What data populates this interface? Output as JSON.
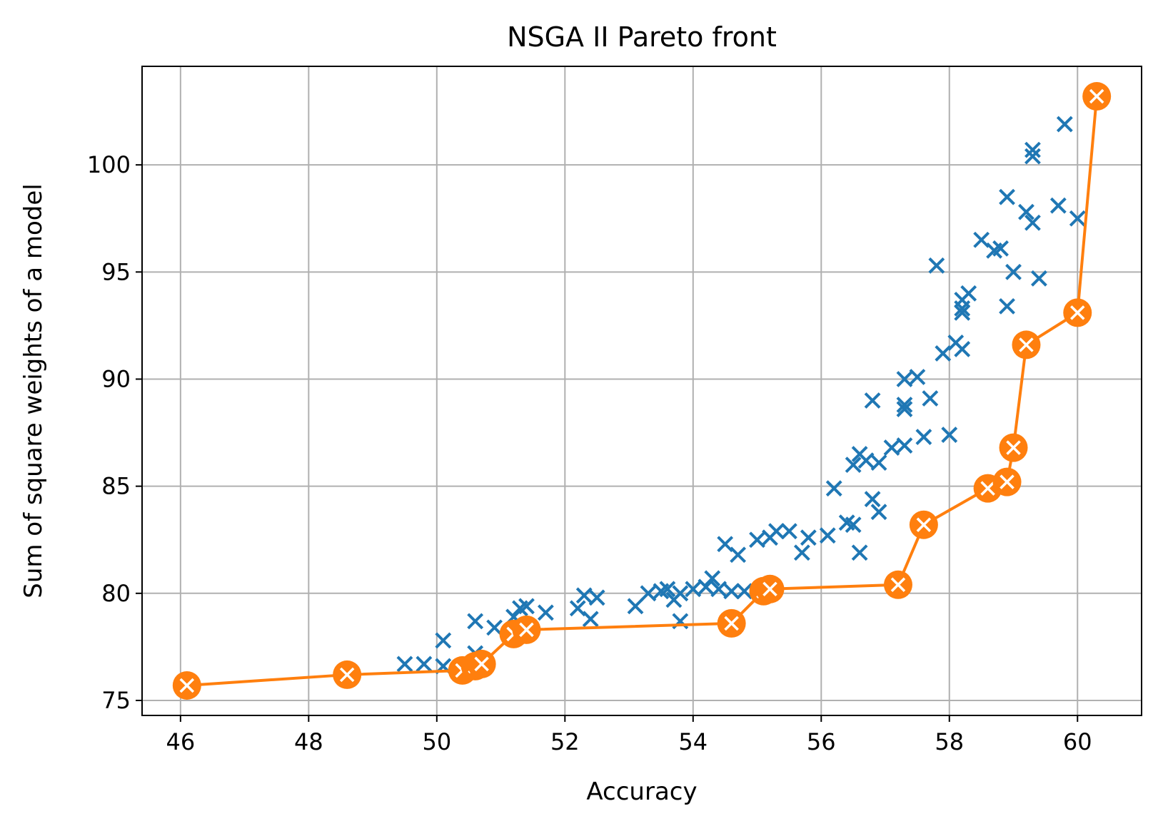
{
  "chart_data": {
    "type": "scatter",
    "title": "NSGA II Pareto front",
    "xlabel": "Accuracy",
    "ylabel": "Sum of square weights of a model",
    "xlim": [
      45.4,
      61.0
    ],
    "ylim": [
      74.3,
      104.6
    ],
    "xticks": [
      46,
      48,
      50,
      52,
      54,
      56,
      58,
      60
    ],
    "yticks": [
      75,
      80,
      85,
      90,
      95,
      100
    ],
    "grid": true,
    "colors": {
      "population": "#1f77b4",
      "front": "#ff7f0e"
    },
    "population": {
      "marker": "x",
      "points": [
        [
          46.1,
          75.7
        ],
        [
          48.6,
          76.2
        ],
        [
          49.5,
          76.7
        ],
        [
          49.8,
          76.7
        ],
        [
          50.1,
          77.8
        ],
        [
          50.1,
          76.6
        ],
        [
          50.4,
          76.4
        ],
        [
          50.6,
          77.2
        ],
        [
          50.6,
          78.7
        ],
        [
          50.7,
          76.6
        ],
        [
          50.9,
          78.4
        ],
        [
          51.2,
          78.1
        ],
        [
          51.2,
          78.9
        ],
        [
          51.3,
          79.3
        ],
        [
          51.4,
          79.4
        ],
        [
          51.4,
          78.3
        ],
        [
          51.7,
          79.1
        ],
        [
          52.2,
          79.3
        ],
        [
          52.3,
          79.9
        ],
        [
          52.4,
          78.8
        ],
        [
          52.5,
          79.8
        ],
        [
          53.1,
          79.4
        ],
        [
          53.3,
          80.0
        ],
        [
          53.5,
          80.1
        ],
        [
          53.6,
          80.2
        ],
        [
          53.7,
          79.7
        ],
        [
          53.8,
          80.0
        ],
        [
          53.8,
          78.7
        ],
        [
          54.0,
          80.2
        ],
        [
          54.2,
          80.3
        ],
        [
          54.3,
          80.7
        ],
        [
          54.4,
          80.2
        ],
        [
          54.5,
          82.3
        ],
        [
          54.6,
          80.1
        ],
        [
          54.6,
          78.6
        ],
        [
          54.7,
          81.8
        ],
        [
          54.8,
          80.1
        ],
        [
          55.0,
          82.5
        ],
        [
          55.1,
          80.0
        ],
        [
          55.2,
          80.2
        ],
        [
          55.2,
          82.6
        ],
        [
          55.3,
          82.9
        ],
        [
          55.5,
          82.9
        ],
        [
          55.7,
          81.9
        ],
        [
          55.8,
          82.6
        ],
        [
          56.1,
          82.7
        ],
        [
          56.2,
          84.9
        ],
        [
          56.4,
          83.3
        ],
        [
          56.5,
          83.2
        ],
        [
          56.5,
          86.0
        ],
        [
          56.6,
          86.5
        ],
        [
          56.6,
          81.9
        ],
        [
          56.7,
          86.2
        ],
        [
          56.8,
          89.0
        ],
        [
          56.8,
          84.4
        ],
        [
          56.9,
          86.1
        ],
        [
          56.9,
          83.8
        ],
        [
          57.1,
          86.8
        ],
        [
          57.2,
          80.4
        ],
        [
          57.3,
          90.0
        ],
        [
          57.3,
          88.6
        ],
        [
          57.3,
          88.8
        ],
        [
          57.3,
          86.9
        ],
        [
          57.5,
          90.1
        ],
        [
          57.6,
          83.2
        ],
        [
          57.6,
          87.3
        ],
        [
          57.7,
          89.1
        ],
        [
          57.8,
          95.3
        ],
        [
          57.9,
          91.2
        ],
        [
          58.0,
          87.4
        ],
        [
          58.1,
          91.7
        ],
        [
          58.2,
          93.3
        ],
        [
          58.2,
          93.7
        ],
        [
          58.2,
          91.4
        ],
        [
          58.2,
          93.1
        ],
        [
          58.3,
          94.0
        ],
        [
          58.5,
          96.5
        ],
        [
          58.6,
          84.9
        ],
        [
          58.7,
          96.0
        ],
        [
          58.8,
          96.1
        ],
        [
          58.9,
          98.5
        ],
        [
          58.9,
          93.4
        ],
        [
          58.9,
          85.2
        ],
        [
          59.0,
          95.0
        ],
        [
          59.0,
          86.8
        ],
        [
          59.2,
          97.8
        ],
        [
          59.2,
          91.6
        ],
        [
          59.3,
          100.7
        ],
        [
          59.3,
          100.4
        ],
        [
          59.3,
          97.3
        ],
        [
          59.4,
          94.7
        ],
        [
          59.7,
          98.1
        ],
        [
          59.8,
          101.9
        ],
        [
          60.0,
          97.5
        ],
        [
          60.0,
          93.1
        ],
        [
          60.3,
          103.2
        ]
      ]
    },
    "pareto_front": {
      "marker": "o",
      "points": [
        [
          46.1,
          75.7
        ],
        [
          48.6,
          76.2
        ],
        [
          50.4,
          76.4
        ],
        [
          50.6,
          76.6
        ],
        [
          50.7,
          76.7
        ],
        [
          51.2,
          78.1
        ],
        [
          51.4,
          78.3
        ],
        [
          54.6,
          78.6
        ],
        [
          55.1,
          80.1
        ],
        [
          55.2,
          80.2
        ],
        [
          57.2,
          80.4
        ],
        [
          57.6,
          83.2
        ],
        [
          58.6,
          84.9
        ],
        [
          58.9,
          85.2
        ],
        [
          59.0,
          86.8
        ],
        [
          59.2,
          91.6
        ],
        [
          60.0,
          93.1
        ],
        [
          60.3,
          103.2
        ]
      ]
    }
  }
}
